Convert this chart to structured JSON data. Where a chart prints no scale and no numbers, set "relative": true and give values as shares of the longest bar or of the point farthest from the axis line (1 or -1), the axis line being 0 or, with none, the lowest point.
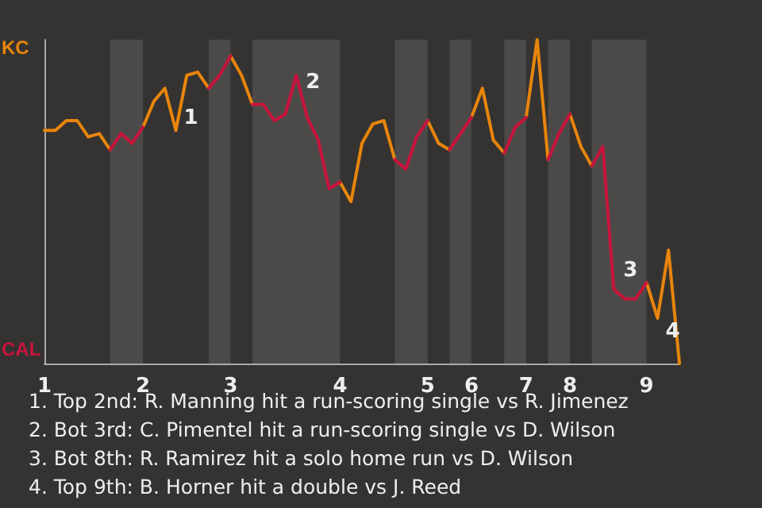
{
  "chart_data": {
    "type": "line",
    "relative": true,
    "categories": [
      "1",
      null,
      null,
      null,
      null,
      null,
      null,
      null,
      null,
      "2",
      null,
      null,
      null,
      null,
      null,
      null,
      null,
      "3",
      null,
      null,
      null,
      null,
      null,
      null,
      null,
      null,
      null,
      "4",
      null,
      null,
      null,
      null,
      null,
      null,
      null,
      "5",
      null,
      null,
      null,
      "6",
      null,
      null,
      null,
      null,
      "7",
      null,
      null,
      null,
      "8",
      null,
      null,
      null,
      null,
      null,
      null,
      "9",
      null,
      null,
      null
    ],
    "series": [
      {
        "color": "#e8850c",
        "values": [
          0.72,
          0.72,
          0.75,
          0.75,
          0.7,
          0.71,
          0.66,
          null,
          null,
          0.73,
          0.81,
          0.85,
          0.72,
          0.89,
          0.9,
          0.85,
          null,
          0.95,
          0.89,
          0.8,
          null,
          null,
          null,
          null,
          null,
          null,
          null,
          0.56,
          0.5,
          0.68,
          0.74,
          0.75,
          0.63,
          null,
          null,
          0.75,
          0.68,
          0.66,
          null,
          0.76,
          0.85,
          0.69,
          0.65,
          null,
          0.76,
          1,
          0.63,
          null,
          0.77,
          0.67,
          0.61,
          null,
          null,
          null,
          null,
          0.25,
          0.14,
          0.35,
          0
        ]
      },
      {
        "color": "#c8143c",
        "values": [
          null,
          null,
          null,
          null,
          null,
          null,
          0.66,
          0.71,
          0.68,
          0.73,
          null,
          null,
          null,
          null,
          null,
          0.85,
          0.89,
          0.95,
          null,
          0.8,
          0.8,
          0.75,
          0.77,
          0.89,
          0.76,
          0.69,
          0.54,
          0.56,
          null,
          null,
          null,
          null,
          0.63,
          0.6,
          0.7,
          0.75,
          null,
          0.66,
          0.71,
          0.76,
          null,
          null,
          0.65,
          0.73,
          0.76,
          null,
          0.63,
          0.71,
          0.77,
          null,
          0.61,
          0.67,
          0.23,
          0.2,
          0.2,
          0.25,
          null,
          null,
          null
        ]
      }
    ],
    "marker": "none",
    "line_style": "solid",
    "annotations": [
      "KC",
      "CAL",
      "1",
      "2",
      "3",
      "4",
      "1. Top 2nd: R. Manning hit a run-scoring single vs R. Jimenez",
      "2. Bot 3rd: C. Pimentel hit a run-scoring single vs D. Wilson",
      "3. Bot 8th: R. Ramirez hit a solo home run vs D. Wilson",
      "4. Top 9th: B. Horner hit a double vs J. Reed"
    ]
  }
}
